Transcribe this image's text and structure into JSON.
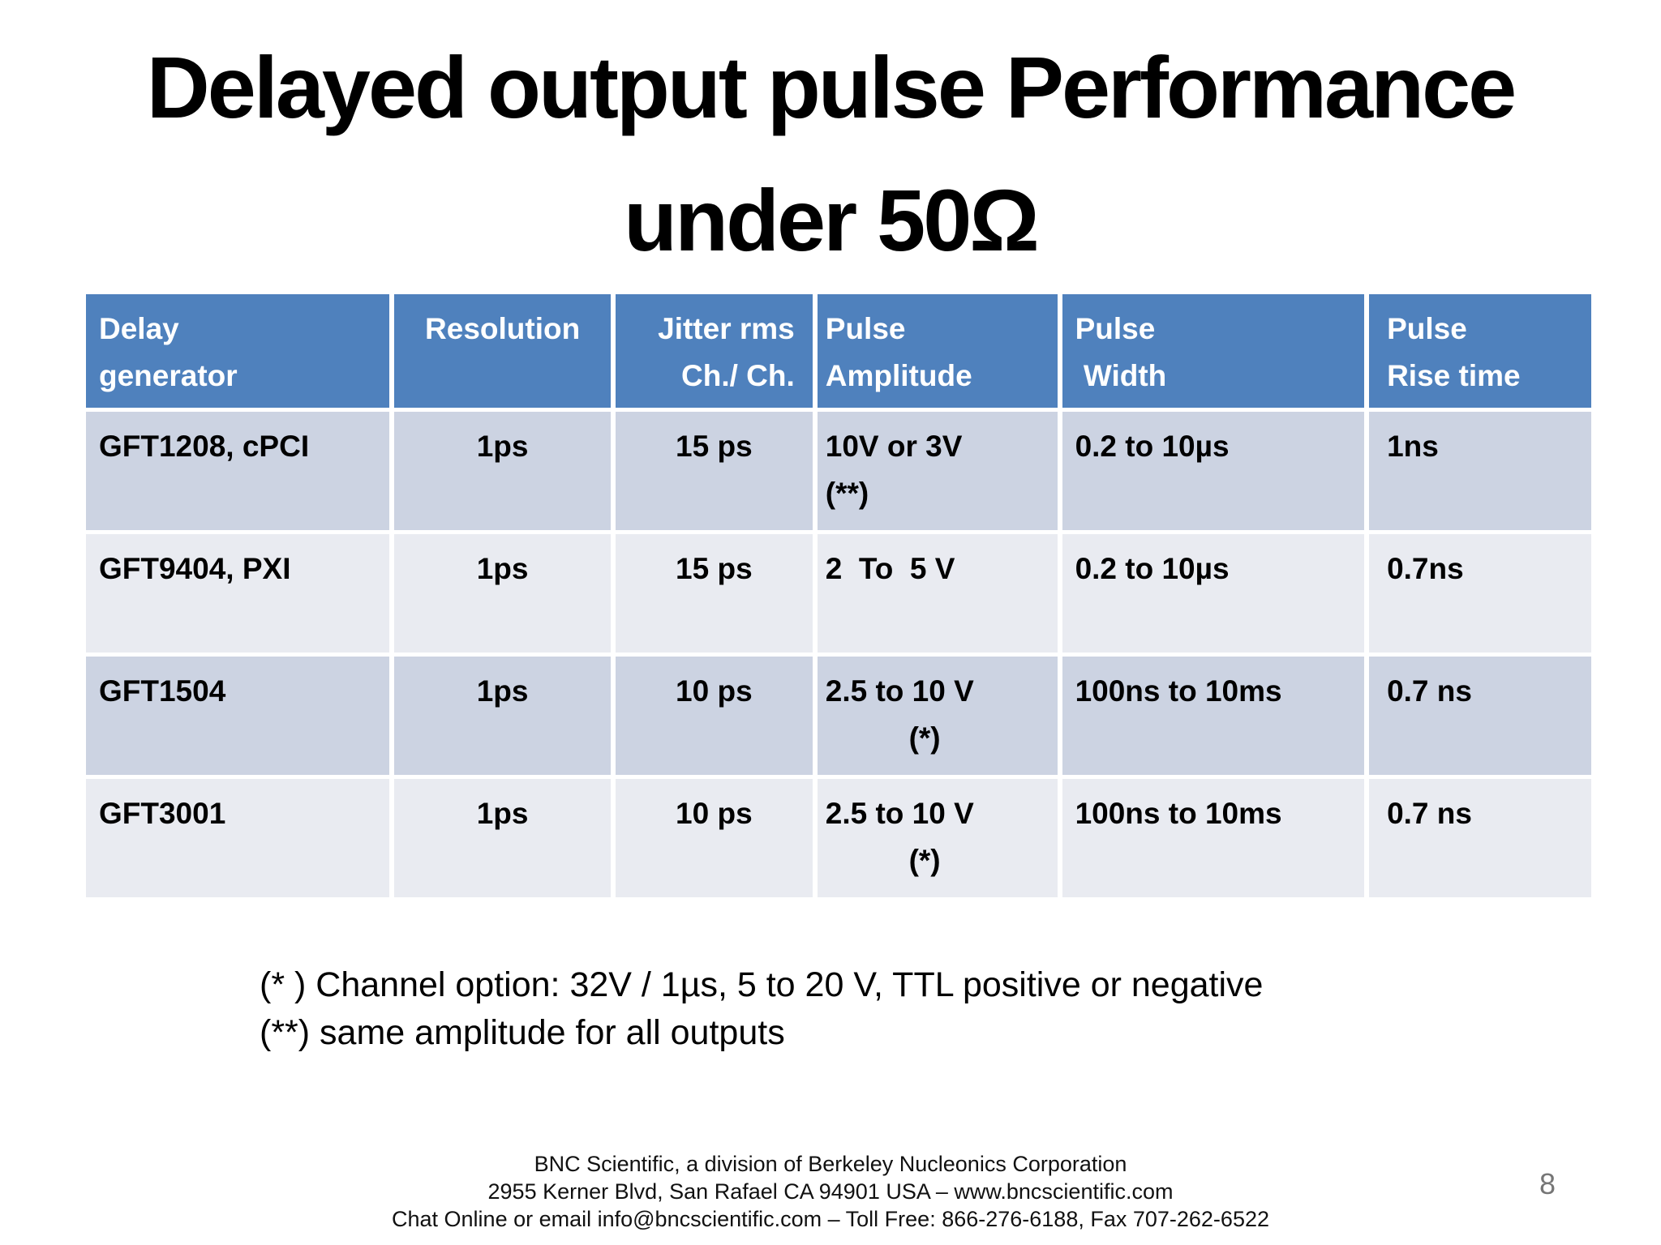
{
  "title": {
    "line1": "Delayed output pulse Performance",
    "line2": "under 50Ω"
  },
  "table": {
    "headers": [
      {
        "label": "Delay\ngenerator"
      },
      {
        "label": "Resolution"
      },
      {
        "label": "Jitter rms\nCh./ Ch."
      },
      {
        "label": "Pulse\nAmplitude"
      },
      {
        "label": "Pulse\n Width"
      },
      {
        "label": "Pulse\nRise time"
      }
    ],
    "rows": [
      {
        "delay_generator": "GFT1208, cPCI",
        "resolution": "1ps",
        "jitter_rms": "15 ps",
        "pulse_amplitude": "10V or 3V\n(**)",
        "pulse_width": "0.2 to 10µs",
        "pulse_rise_time": "1ns"
      },
      {
        "delay_generator": "GFT9404, PXI",
        "resolution": "1ps",
        "jitter_rms": "15 ps",
        "pulse_amplitude": "2  To  5 V",
        "pulse_width": "0.2 to 10µs",
        "pulse_rise_time": "0.7ns"
      },
      {
        "delay_generator": "GFT1504",
        "resolution": "1ps",
        "jitter_rms": "10 ps",
        "pulse_amplitude": "2.5 to 10 V\n          (*)",
        "pulse_width": "100ns to 10ms",
        "pulse_rise_time": "0.7 ns"
      },
      {
        "delay_generator": "GFT3001",
        "resolution": "1ps",
        "jitter_rms": "10 ps",
        "pulse_amplitude": "2.5 to 10 V\n          (*)",
        "pulse_width": "100ns to 10ms",
        "pulse_rise_time": "0.7 ns"
      }
    ]
  },
  "footnotes": [
    "(* ) Channel option: 32V / 1µs, 5 to 20 V, TTL positive or negative",
    "(**) same amplitude for all outputs"
  ],
  "footer": {
    "lines": [
      "BNC Scientific, a division of Berkeley Nucleonics Corporation",
      "2955 Kerner Blvd, San Rafael CA 94901 USA – www.bncscientific.com",
      "Chat Online or email info@bncscientific.com – Toll Free: 866-276-6188, Fax 707-262-6522"
    ],
    "page_number": "8"
  },
  "colors": {
    "header_bg": "#4f81bd",
    "header_text": "#ffffff",
    "row_band_dark": "#ccd3e2",
    "row_band_light": "#e9ebf1",
    "body_text": "#000000",
    "page_number_gray": "#767676",
    "background": "#ffffff"
  }
}
